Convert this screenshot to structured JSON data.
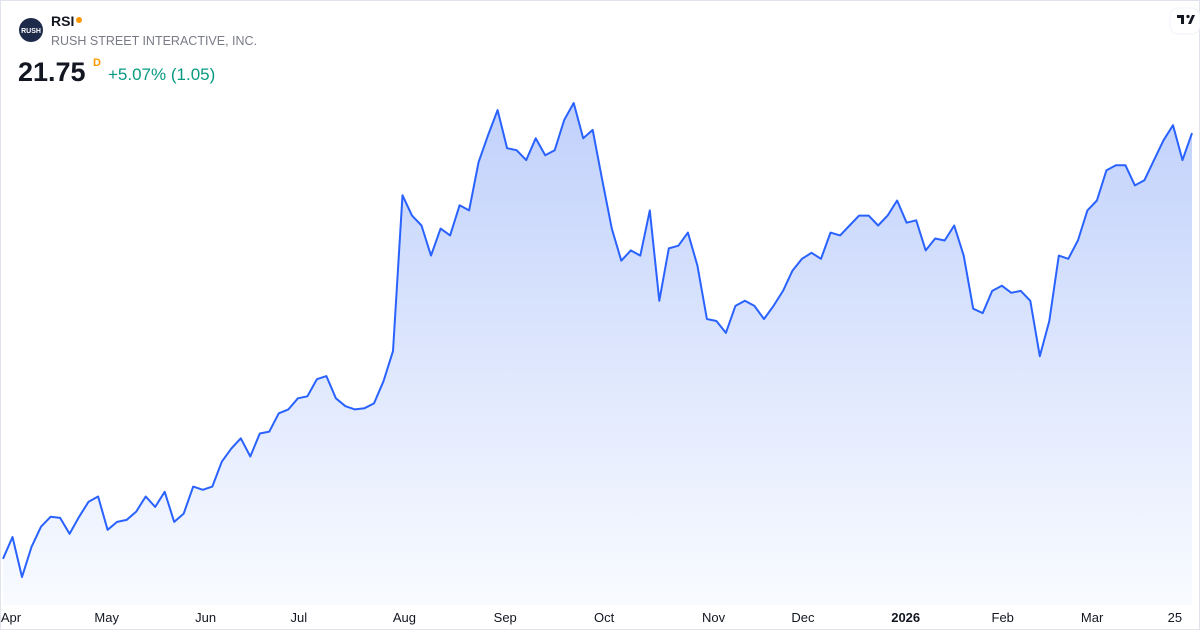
{
  "header": {
    "logo": "RUSH",
    "symbol": "RSI",
    "company": "RUSH STREET INTERACTIVE, INC.",
    "price": 21.75,
    "interval": "D",
    "change": "+5.07% (1.05)"
  },
  "chart_data": {
    "type": "area",
    "color": "#2962ff",
    "values": [
      11.01,
      11.56,
      10.55,
      11.31,
      11.82,
      12.07,
      12.04,
      11.64,
      12.07,
      12.45,
      12.58,
      11.74,
      11.94,
      11.99,
      12.2,
      12.58,
      12.32,
      12.7,
      11.94,
      12.15,
      12.83,
      12.75,
      12.83,
      13.46,
      13.79,
      14.05,
      13.59,
      14.17,
      14.22,
      14.68,
      14.78,
      15.06,
      15.11,
      15.54,
      15.62,
      15.06,
      14.86,
      14.78,
      14.81,
      14.93,
      15.49,
      16.25,
      20.18,
      19.67,
      19.42,
      18.66,
      19.34,
      19.17,
      19.93,
      19.8,
      21.02,
      21.7,
      22.33,
      21.37,
      21.32,
      21.07,
      21.62,
      21.19,
      21.32,
      22.08,
      22.51,
      21.62,
      21.83,
      20.56,
      19.34,
      18.53,
      18.79,
      18.66,
      19.8,
      17.52,
      18.84,
      18.91,
      19.24,
      18.41,
      17.06,
      17.01,
      16.71,
      17.39,
      17.52,
      17.39,
      17.06,
      17.39,
      17.77,
      18.28,
      18.58,
      18.73,
      18.58,
      19.24,
      19.17,
      19.42,
      19.67,
      19.67,
      19.42,
      19.67,
      20.05,
      19.49,
      19.55,
      18.79,
      19.09,
      19.04,
      19.42,
      18.66,
      17.32,
      17.21,
      17.77,
      17.9,
      17.72,
      17.77,
      17.52,
      16.12,
      17.01,
      18.66,
      18.58,
      19.04,
      19.8,
      20.05,
      20.81,
      20.94,
      20.94,
      20.43,
      20.56,
      21.07,
      21.57,
      21.95,
      21.07,
      21.75
    ],
    "xlim": [
      0,
      125
    ],
    "xticks": [
      {
        "value": 0.84,
        "label": "Apr"
      },
      {
        "value": 10.9,
        "label": "May"
      },
      {
        "value": 21.3,
        "label": "Jun"
      },
      {
        "value": 31.1,
        "label": "Jul"
      },
      {
        "value": 42.2,
        "label": "Aug"
      },
      {
        "value": 52.8,
        "label": "Sep"
      },
      {
        "value": 63.2,
        "label": "Oct"
      },
      {
        "value": 74.7,
        "label": "Nov"
      },
      {
        "value": 84.1,
        "label": "Dec"
      },
      {
        "value": 94.9,
        "label": "2026",
        "bold": true
      },
      {
        "value": 105.1,
        "label": "Feb"
      },
      {
        "value": 114.5,
        "label": "Mar"
      },
      {
        "value": 123.2,
        "label": "25"
      }
    ]
  }
}
